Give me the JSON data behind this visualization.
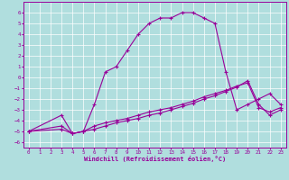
{
  "xlabel": "Windchill (Refroidissement éolien,°C)",
  "background_color": "#b0dede",
  "grid_color": "#ffffff",
  "line_color": "#990099",
  "xlim": [
    -0.5,
    23.5
  ],
  "ylim": [
    -6.5,
    7.0
  ],
  "xticks": [
    0,
    1,
    2,
    3,
    4,
    5,
    6,
    7,
    8,
    9,
    10,
    11,
    12,
    13,
    14,
    15,
    16,
    17,
    18,
    19,
    20,
    21,
    22,
    23
  ],
  "yticks": [
    -6,
    -5,
    -4,
    -3,
    -2,
    -1,
    0,
    1,
    2,
    3,
    4,
    5,
    6
  ],
  "line1_x": [
    0,
    3,
    4,
    5,
    6,
    7,
    8,
    9,
    10,
    11,
    12,
    13,
    14,
    15,
    16,
    17,
    18,
    19,
    20,
    21,
    22,
    23
  ],
  "line1_y": [
    -5,
    -3.5,
    -5.2,
    -5.0,
    -2.5,
    0.5,
    1.0,
    2.5,
    4.0,
    5.0,
    5.5,
    5.5,
    6.0,
    6.0,
    5.5,
    5.0,
    0.5,
    -3.0,
    -2.5,
    -2.0,
    -1.5,
    -2.5
  ],
  "line2_x": [
    0,
    3,
    4,
    5,
    6,
    7,
    8,
    9,
    10,
    11,
    12,
    13,
    14,
    15,
    16,
    17,
    18,
    19,
    20,
    21,
    22,
    23
  ],
  "line2_y": [
    -5,
    -4.5,
    -5.2,
    -5.0,
    -4.5,
    -4.2,
    -4.0,
    -3.8,
    -3.5,
    -3.2,
    -3.0,
    -2.8,
    -2.5,
    -2.2,
    -1.8,
    -1.5,
    -1.2,
    -0.8,
    -0.5,
    -2.8,
    -3.2,
    -2.8
  ],
  "line3_x": [
    0,
    3,
    4,
    5,
    6,
    7,
    8,
    9,
    10,
    11,
    12,
    13,
    14,
    15,
    16,
    17,
    18,
    19,
    20,
    21,
    22,
    23
  ],
  "line3_y": [
    -5,
    -4.8,
    -5.2,
    -5.0,
    -4.8,
    -4.5,
    -4.2,
    -4.0,
    -3.8,
    -3.5,
    -3.3,
    -3.0,
    -2.7,
    -2.4,
    -2.0,
    -1.7,
    -1.3,
    -0.9,
    -0.3,
    -2.5,
    -3.5,
    -3.0
  ]
}
